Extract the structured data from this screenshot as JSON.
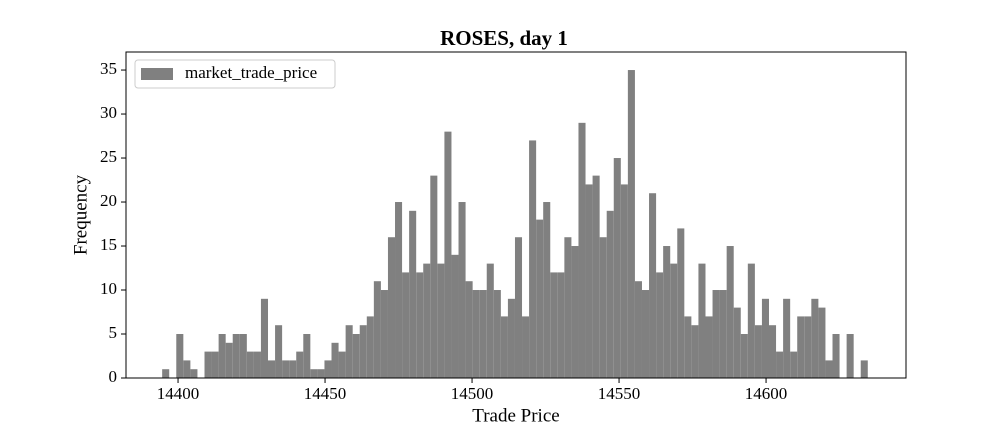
{
  "chart_data": {
    "type": "histogram",
    "title": "ROSES, day 1",
    "xlabel": "Trade Price",
    "ylabel": "Frequency",
    "bins": [
      14394.6,
      14397,
      14399.4,
      14401.8,
      14404.2,
      14406.6,
      14409,
      14411.4,
      14413.8,
      14416.2,
      14418.6,
      14421,
      14423.4,
      14425.8,
      14428.2,
      14430.6,
      14433,
      14435.4,
      14437.8,
      14440.2,
      14442.6,
      14445,
      14447.4,
      14449.8,
      14452.2,
      14454.6,
      14457,
      14459.4,
      14461.8,
      14464.2,
      14466.6,
      14469,
      14471.4,
      14473.8,
      14476.2,
      14478.6,
      14481,
      14483.4,
      14485.8,
      14488.2,
      14490.6,
      14493,
      14495.4,
      14497.8,
      14500.2,
      14502.6,
      14505,
      14507.4,
      14509.8,
      14512.2,
      14514.6,
      14517,
      14519.4,
      14521.8,
      14524.2,
      14526.6,
      14529,
      14531.4,
      14533.8,
      14536.2,
      14538.6,
      14541,
      14543.4,
      14545.8,
      14548.2,
      14550.6,
      14553,
      14555.4,
      14557.8,
      14560.2,
      14562.6,
      14565,
      14567.4,
      14569.8,
      14572.2,
      14574.6,
      14577,
      14579.4,
      14581.8,
      14584.2,
      14586.6,
      14589,
      14591.4,
      14593.8,
      14596.2,
      14598.6,
      14601,
      14603.4,
      14605.8,
      14608.2,
      14610.6,
      14613,
      14615.4,
      14617.8,
      14620.2,
      14622.6,
      14625,
      14627.4,
      14629.8,
      14632.2,
      14634.6
    ],
    "series": [
      {
        "name": "market_trade_price",
        "color": "#808080",
        "values": [
          1,
          0,
          5,
          2,
          1,
          0,
          3,
          3,
          5,
          4,
          5,
          5,
          3,
          3,
          9,
          2,
          6,
          2,
          2,
          3,
          5,
          1,
          1,
          2,
          4,
          3,
          6,
          5,
          6,
          7,
          11,
          10,
          16,
          20,
          12,
          19,
          12,
          13,
          23,
          13,
          28,
          14,
          20,
          11,
          10,
          10,
          13,
          10,
          7,
          9,
          16,
          7,
          27,
          18,
          20,
          12,
          12,
          16,
          15,
          29,
          22,
          23,
          16,
          19,
          25,
          22,
          35,
          11,
          10,
          21,
          12,
          15,
          13,
          17,
          7,
          6,
          13,
          7,
          10,
          10,
          15,
          8,
          5,
          13,
          6,
          9,
          6,
          3,
          9,
          3,
          7,
          7,
          9,
          8,
          2,
          5,
          0,
          5,
          0,
          2
        ]
      }
    ],
    "xlim": [
      14382.3,
      14647.6
    ],
    "xticks": [
      14400,
      14450,
      14500,
      14550,
      14600
    ],
    "ylim": [
      0,
      37.05
    ],
    "yticks": [
      0,
      5,
      10,
      15,
      20,
      25,
      30,
      35
    ],
    "legend": "upper left",
    "grid": false
  }
}
